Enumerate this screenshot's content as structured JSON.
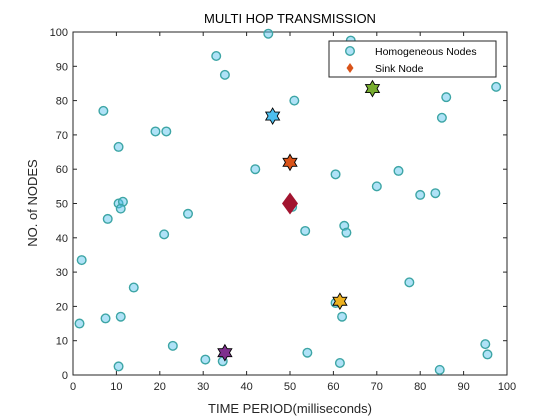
{
  "chart_data": {
    "type": "scatter",
    "title": "MULTI HOP TRANSMISSION",
    "xlabel": "TIME PERIOD(milliseconds)",
    "ylabel": "NO. of NODES",
    "xlim": [
      0,
      100
    ],
    "ylim": [
      0,
      100
    ],
    "xticks": [
      0,
      10,
      20,
      30,
      40,
      50,
      60,
      70,
      80,
      90,
      100
    ],
    "yticks": [
      0,
      10,
      20,
      30,
      40,
      50,
      60,
      70,
      80,
      90,
      100
    ],
    "grid": false,
    "legend_position": "top-right",
    "series": [
      {
        "name": "Homogeneous Nodes",
        "marker": "circle",
        "color": "#4DBEEE",
        "edge_color": "#3DA5A5",
        "points": [
          [
            45,
            99.5
          ],
          [
            64,
            97.5
          ],
          [
            33,
            93
          ],
          [
            35,
            87.5
          ],
          [
            51,
            80
          ],
          [
            86,
            81
          ],
          [
            97.5,
            84
          ],
          [
            7,
            77
          ],
          [
            85,
            75
          ],
          [
            19,
            71
          ],
          [
            21.5,
            71
          ],
          [
            10.5,
            66.5
          ],
          [
            42,
            60
          ],
          [
            60.5,
            58.5
          ],
          [
            75,
            59.5
          ],
          [
            70,
            55
          ],
          [
            80,
            52.5
          ],
          [
            83.5,
            53
          ],
          [
            10.5,
            50
          ],
          [
            11.5,
            50.5
          ],
          [
            11,
            48.5
          ],
          [
            50.5,
            49
          ],
          [
            8,
            45.5
          ],
          [
            26.5,
            47
          ],
          [
            21,
            41
          ],
          [
            53.5,
            42
          ],
          [
            62.5,
            43.5
          ],
          [
            63,
            41.5
          ],
          [
            2,
            33.5
          ],
          [
            14,
            25.5
          ],
          [
            77.5,
            27
          ],
          [
            60.5,
            21
          ],
          [
            62,
            17
          ],
          [
            1.5,
            15
          ],
          [
            7.5,
            16.5
          ],
          [
            11,
            17
          ],
          [
            23,
            8.5
          ],
          [
            54,
            6.5
          ],
          [
            95,
            9
          ],
          [
            95.5,
            6
          ],
          [
            30.5,
            4.5
          ],
          [
            34.5,
            4
          ],
          [
            61.5,
            3.5
          ],
          [
            10.5,
            2.5
          ],
          [
            84.5,
            1.5
          ]
        ]
      },
      {
        "name": "Sink Node",
        "marker": "diamond",
        "color": "#D95319",
        "points": [
          [
            50,
            50
          ]
        ]
      }
    ],
    "cluster_heads": [
      {
        "x": 46,
        "y": 75.5,
        "color": "#4DBEEE"
      },
      {
        "x": 69,
        "y": 83.5,
        "color": "#77AC30"
      },
      {
        "x": 50,
        "y": 62,
        "color": "#D95319"
      },
      {
        "x": 61.5,
        "y": 21.5,
        "color": "#EDB120"
      },
      {
        "x": 35,
        "y": 6.5,
        "color": "#7E2F8E"
      }
    ],
    "sink_display_color": "#A2142F"
  }
}
